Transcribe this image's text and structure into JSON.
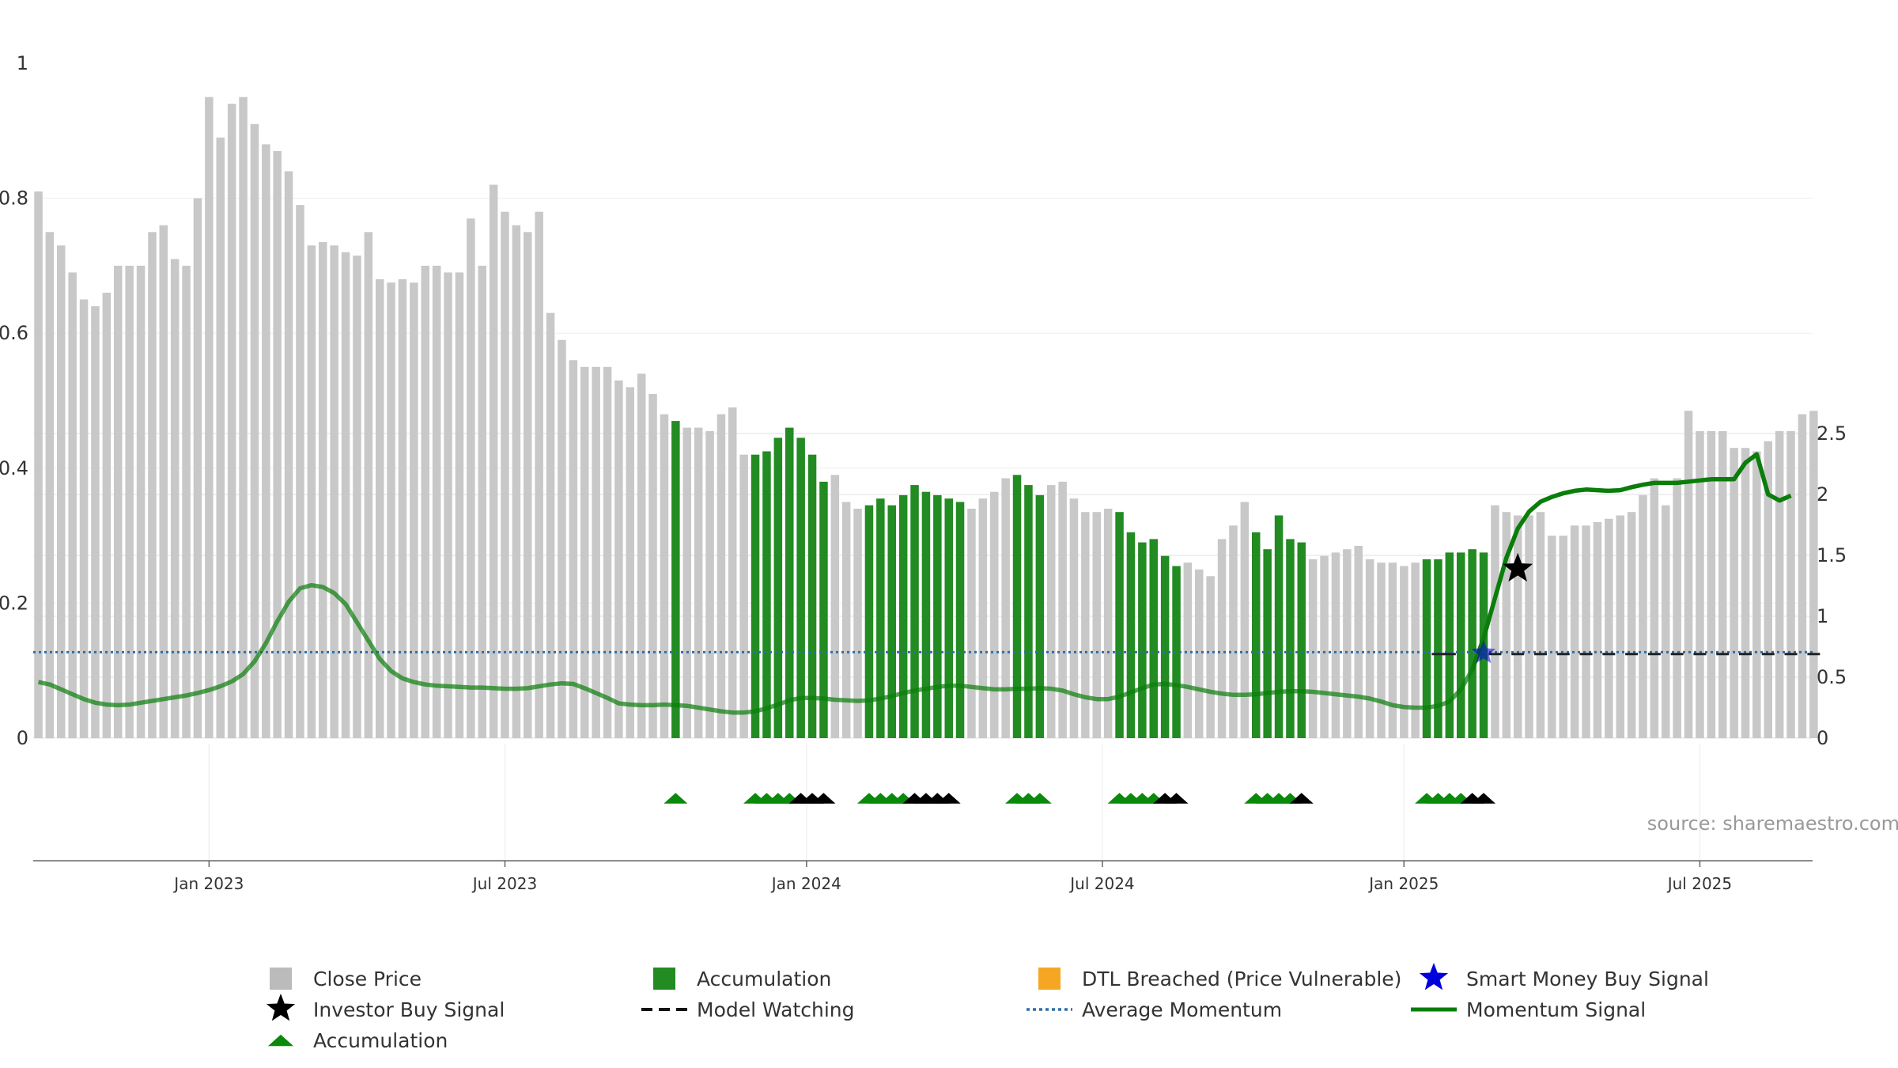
{
  "source_text": "source: sharemaestro.com",
  "chart_data": {
    "type": "bar",
    "x_ticks": [
      "Jan 2023",
      "Jul 2023",
      "Jan 2024",
      "Jul 2024",
      "Jan 2025",
      "Jul 2025"
    ],
    "x_tick_week_index": [
      15,
      41,
      67.5,
      93.5,
      120,
      146
    ],
    "left_axis": {
      "ticks": [
        "0",
        "0.2",
        "0.4",
        "0.6",
        "0.8",
        "1"
      ],
      "ylim": [
        0,
        1
      ]
    },
    "right_axis": {
      "ticks": [
        "0",
        "0.5",
        "1",
        "1.5",
        "2",
        "2.5"
      ],
      "ylim": [
        0,
        2.78
      ]
    },
    "grid": true,
    "legend_position": "bottom",
    "legend": {
      "close_price": "Close Price",
      "accumulation_bar": "Accumulation",
      "dtl_breached": "DTL Breached (Price Vulnerable)",
      "smart_money": "Smart Money Buy Signal",
      "investor_buy": "Investor Buy Signal",
      "model_watching": "Model Watching",
      "average_momentum": "Average Momentum",
      "momentum_signal": "Momentum Signal",
      "accumulation_marker": "Accumulation"
    },
    "colors": {
      "close_price": "#c8c8c8",
      "accumulation": "#228b22",
      "dtl": "#f5a623",
      "smart_money": "#0000dd",
      "investor": "#000000",
      "momentum": "#0a7d0a",
      "average": "#2e6fa8",
      "marker_green": "#0a8a0a"
    },
    "close_price": [
      0.81,
      0.75,
      0.73,
      0.69,
      0.65,
      0.64,
      0.66,
      0.7,
      0.7,
      0.7,
      0.75,
      0.76,
      0.71,
      0.7,
      0.8,
      0.95,
      0.89,
      0.94,
      0.95,
      0.91,
      0.88,
      0.87,
      0.84,
      0.79,
      0.73,
      0.735,
      0.73,
      0.72,
      0.715,
      0.75,
      0.68,
      0.675,
      0.68,
      0.675,
      0.7,
      0.7,
      0.69,
      0.69,
      0.77,
      0.7,
      0.82,
      0.78,
      0.76,
      0.75,
      0.78,
      0.63,
      0.59,
      0.56,
      0.55,
      0.55,
      0.55,
      0.53,
      0.52,
      0.54,
      0.51,
      0.48,
      0.47,
      0.46,
      0.46,
      0.455,
      0.48,
      0.49,
      0.42,
      0.42,
      0.425,
      0.445,
      0.46,
      0.445,
      0.42,
      0.38,
      0.39,
      0.35,
      0.34,
      0.345,
      0.355,
      0.345,
      0.36,
      0.375,
      0.365,
      0.36,
      0.355,
      0.35,
      0.34,
      0.355,
      0.365,
      0.385,
      0.39,
      0.375,
      0.36,
      0.375,
      0.38,
      0.355,
      0.335,
      0.335,
      0.34,
      0.335,
      0.305,
      0.29,
      0.295,
      0.27,
      0.255,
      0.26,
      0.25,
      0.24,
      0.295,
      0.315,
      0.35,
      0.305,
      0.28,
      0.33,
      0.295,
      0.29,
      0.265,
      0.27,
      0.275,
      0.28,
      0.285,
      0.265,
      0.26,
      0.26,
      0.255,
      0.26,
      0.265,
      0.265,
      0.275,
      0.275,
      0.28,
      0.275,
      0.345,
      0.335,
      0.33,
      0.33,
      0.335,
      0.3,
      0.3,
      0.315,
      0.315,
      0.32,
      0.325,
      0.33,
      0.335,
      0.36,
      0.385,
      0.345,
      0.385,
      0.485,
      0.455,
      0.455,
      0.455,
      0.43,
      0.43,
      0.425,
      0.44,
      0.455,
      0.455,
      0.48,
      0.485
    ],
    "accumulation_weeks": [
      56,
      63,
      64,
      65,
      66,
      67,
      68,
      69,
      73,
      74,
      75,
      76,
      77,
      78,
      79,
      80,
      81,
      86,
      87,
      88,
      95,
      96,
      97,
      98,
      99,
      100,
      107,
      108,
      109,
      110,
      111,
      122,
      123,
      124,
      125,
      126,
      127
    ],
    "momentum_signal": [
      0.46,
      0.44,
      0.4,
      0.36,
      0.32,
      0.29,
      0.275,
      0.27,
      0.275,
      0.29,
      0.305,
      0.32,
      0.335,
      0.35,
      0.37,
      0.395,
      0.425,
      0.465,
      0.525,
      0.63,
      0.78,
      0.96,
      1.12,
      1.23,
      1.255,
      1.24,
      1.19,
      1.1,
      0.95,
      0.8,
      0.65,
      0.55,
      0.49,
      0.46,
      0.44,
      0.43,
      0.425,
      0.42,
      0.415,
      0.415,
      0.41,
      0.405,
      0.405,
      0.41,
      0.425,
      0.44,
      0.45,
      0.445,
      0.41,
      0.37,
      0.33,
      0.285,
      0.275,
      0.27,
      0.27,
      0.275,
      0.27,
      0.265,
      0.25,
      0.235,
      0.22,
      0.21,
      0.21,
      0.22,
      0.245,
      0.275,
      0.31,
      0.33,
      0.33,
      0.325,
      0.315,
      0.31,
      0.305,
      0.31,
      0.325,
      0.345,
      0.37,
      0.39,
      0.405,
      0.42,
      0.43,
      0.43,
      0.42,
      0.41,
      0.4,
      0.4,
      0.405,
      0.405,
      0.41,
      0.405,
      0.39,
      0.36,
      0.335,
      0.32,
      0.32,
      0.34,
      0.375,
      0.41,
      0.44,
      0.445,
      0.435,
      0.42,
      0.4,
      0.38,
      0.365,
      0.355,
      0.355,
      0.36,
      0.37,
      0.38,
      0.385,
      0.385,
      0.38,
      0.37,
      0.36,
      0.35,
      0.34,
      0.325,
      0.3,
      0.27,
      0.255,
      0.25,
      0.25,
      0.265,
      0.3,
      0.4,
      0.56,
      0.82,
      1.15,
      1.48,
      1.72,
      1.86,
      1.94,
      1.98,
      2.01,
      2.03,
      2.04,
      2.035,
      2.03,
      2.035,
      2.06,
      2.08,
      2.095,
      2.095,
      2.095,
      2.105,
      2.115,
      2.125,
      2.125,
      2.125,
      2.26,
      2.33,
      2.0,
      1.95,
      1.99
    ],
    "momentum_signal_highlight_from": 126,
    "average_momentum": 0.705,
    "investor_buy_signal": {
      "week": 130,
      "value": 1.39
    },
    "smart_money_buy_signal": {
      "week": 127,
      "value": 0.7
    },
    "model_watching_weeks": [
      123,
      124,
      128,
      130,
      132,
      134,
      136,
      138,
      140,
      142,
      144,
      146,
      148,
      150,
      152,
      154,
      156
    ],
    "model_watching_value": 0.69,
    "accumulation_markers": [
      {
        "week": 56,
        "color": "green"
      },
      {
        "week": 63,
        "color": "green"
      },
      {
        "week": 64,
        "color": "green"
      },
      {
        "week": 65,
        "color": "green"
      },
      {
        "week": 66,
        "color": "green"
      },
      {
        "week": 67,
        "color": "black"
      },
      {
        "week": 68,
        "color": "black"
      },
      {
        "week": 69,
        "color": "black"
      },
      {
        "week": 73,
        "color": "green"
      },
      {
        "week": 74,
        "color": "green"
      },
      {
        "week": 75,
        "color": "green"
      },
      {
        "week": 76,
        "color": "green"
      },
      {
        "week": 77,
        "color": "black"
      },
      {
        "week": 78,
        "color": "black"
      },
      {
        "week": 79,
        "color": "black"
      },
      {
        "week": 80,
        "color": "black"
      },
      {
        "week": 86,
        "color": "green"
      },
      {
        "week": 87,
        "color": "green"
      },
      {
        "week": 88,
        "color": "green"
      },
      {
        "week": 95,
        "color": "green"
      },
      {
        "week": 96,
        "color": "green"
      },
      {
        "week": 97,
        "color": "green"
      },
      {
        "week": 98,
        "color": "green"
      },
      {
        "week": 99,
        "color": "black"
      },
      {
        "week": 100,
        "color": "black"
      },
      {
        "week": 107,
        "color": "green"
      },
      {
        "week": 108,
        "color": "green"
      },
      {
        "week": 109,
        "color": "green"
      },
      {
        "week": 110,
        "color": "green"
      },
      {
        "week": 111,
        "color": "black"
      },
      {
        "week": 122,
        "color": "green"
      },
      {
        "week": 123,
        "color": "green"
      },
      {
        "week": 124,
        "color": "green"
      },
      {
        "week": 125,
        "color": "green"
      },
      {
        "week": 126,
        "color": "black"
      },
      {
        "week": 127,
        "color": "black"
      }
    ]
  }
}
